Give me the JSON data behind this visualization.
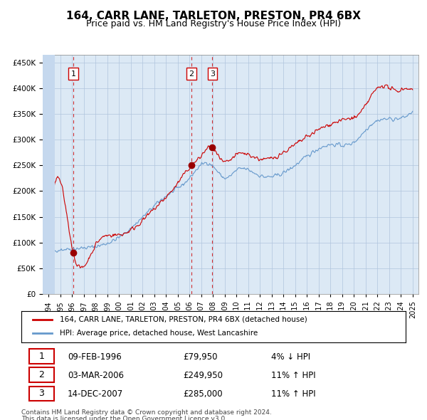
{
  "title": "164, CARR LANE, TARLETON, PRESTON, PR4 6BX",
  "subtitle": "Price paid vs. HM Land Registry's House Price Index (HPI)",
  "bg_color": "#dce9f5",
  "plot_bg_color": "#dce9f5",
  "hatch_color": "#c5d8ee",
  "grid_color": "#b0c4de",
  "red_line_color": "#cc0000",
  "blue_line_color": "#6699cc",
  "sale_marker_color": "#990000",
  "vline_color": "#cc0000",
  "transactions": [
    {
      "num": 1,
      "date_str": "09-FEB-1996",
      "price": 79950,
      "pct": "4%",
      "dir": "↓",
      "x_year": 1996.11
    },
    {
      "num": 2,
      "date_str": "03-MAR-2006",
      "price": 249950,
      "pct": "11%",
      "dir": "↑",
      "x_year": 2006.17
    },
    {
      "num": 3,
      "date_str": "14-DEC-2007",
      "price": 285000,
      "pct": "11%",
      "dir": "↑",
      "x_year": 2007.95
    }
  ],
  "ylabel_ticks": [
    0,
    50000,
    100000,
    150000,
    200000,
    250000,
    300000,
    350000,
    400000,
    450000
  ],
  "ylim": [
    0,
    465000
  ],
  "xlim_start": 1993.5,
  "xlim_end": 2025.5,
  "xtick_years": [
    1994,
    1995,
    1996,
    1997,
    1998,
    1999,
    2000,
    2001,
    2002,
    2003,
    2004,
    2005,
    2006,
    2007,
    2008,
    2009,
    2010,
    2011,
    2012,
    2013,
    2014,
    2015,
    2016,
    2017,
    2018,
    2019,
    2020,
    2021,
    2022,
    2023,
    2024,
    2025
  ],
  "legend_label_red": "164, CARR LANE, TARLETON, PRESTON, PR4 6BX (detached house)",
  "legend_label_blue": "HPI: Average price, detached house, West Lancashire",
  "footer_line1": "Contains HM Land Registry data © Crown copyright and database right 2024.",
  "footer_line2": "This data is licensed under the Open Government Licence v3.0."
}
